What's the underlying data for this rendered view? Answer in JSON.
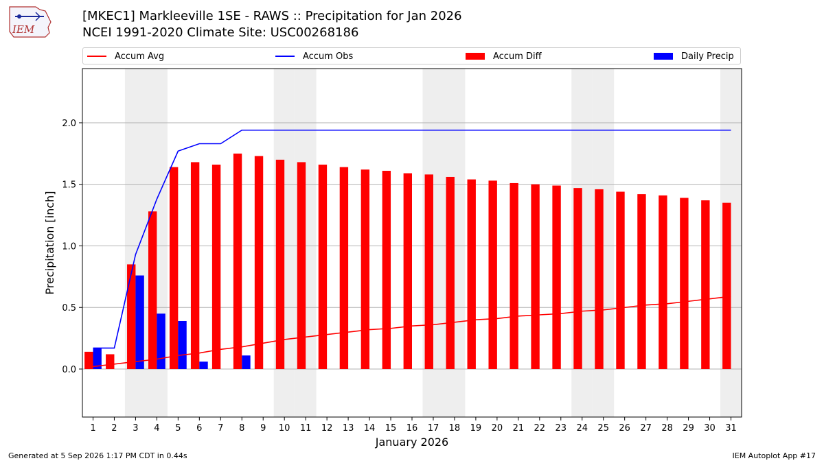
{
  "title_line1": "[MKEC1] Markleeville 1SE - RAWS :: Precipitation for Jan 2026",
  "title_line2": "NCEI 1991-2020 Climate Site: USC00268186",
  "logo_text": "IEM",
  "footer_left": "Generated at 5 Sep 2026 1:17 PM CDT in 0.44s",
  "footer_right": "IEM Autoplot App #17",
  "colors": {
    "avg": "#ff0000",
    "obs": "#0000ff",
    "diff": "#ff0000",
    "daily": "#0000ff",
    "weekend": "#eeeeee",
    "grid": "#b0b0b0"
  },
  "legend": [
    {
      "label": "Accum Avg",
      "kind": "line",
      "color": "#ff0000"
    },
    {
      "label": "Accum Obs",
      "kind": "line",
      "color": "#0000ff"
    },
    {
      "label": "Accum Diff",
      "kind": "box",
      "color": "#ff0000"
    },
    {
      "label": "Daily Precip",
      "kind": "box",
      "color": "#0000ff"
    }
  ],
  "chart_data": {
    "type": "bar",
    "xlabel": "January 2026",
    "ylabel": "Precipitation [inch]",
    "ylim": [
      -0.39,
      2.44
    ],
    "yticks": [
      0.0,
      0.5,
      1.0,
      1.5,
      2.0
    ],
    "ytick_labels": [
      "0.0",
      "0.5",
      "1.0",
      "1.5",
      "2.0"
    ],
    "grid": true,
    "legend_position": "top",
    "days": [
      1,
      2,
      3,
      4,
      5,
      6,
      7,
      8,
      9,
      10,
      11,
      12,
      13,
      14,
      15,
      16,
      17,
      18,
      19,
      20,
      21,
      22,
      23,
      24,
      25,
      26,
      27,
      28,
      29,
      30,
      31
    ],
    "shaded_days": [
      3,
      4,
      10,
      11,
      17,
      18,
      24,
      25,
      31
    ],
    "series": [
      {
        "name": "Accum Avg",
        "kind": "line",
        "values": [
          0.02,
          0.04,
          0.06,
          0.08,
          0.11,
          0.13,
          0.16,
          0.18,
          0.21,
          0.24,
          0.26,
          0.28,
          0.3,
          0.32,
          0.33,
          0.35,
          0.36,
          0.38,
          0.4,
          0.41,
          0.43,
          0.44,
          0.45,
          0.47,
          0.48,
          0.5,
          0.52,
          0.53,
          0.55,
          0.57,
          0.59
        ]
      },
      {
        "name": "Accum Obs",
        "kind": "line",
        "values": [
          0.17,
          0.17,
          0.93,
          1.38,
          1.77,
          1.83,
          1.83,
          1.94,
          1.94,
          1.94,
          1.94,
          1.94,
          1.94,
          1.94,
          1.94,
          1.94,
          1.94,
          1.94,
          1.94,
          1.94,
          1.94,
          1.94,
          1.94,
          1.94,
          1.94,
          1.94,
          1.94,
          1.94,
          1.94,
          1.94,
          1.94
        ]
      },
      {
        "name": "Accum Diff",
        "kind": "bar",
        "values": [
          0.14,
          0.12,
          0.85,
          1.28,
          1.64,
          1.68,
          1.66,
          1.75,
          1.73,
          1.7,
          1.68,
          1.66,
          1.64,
          1.62,
          1.61,
          1.59,
          1.58,
          1.56,
          1.54,
          1.53,
          1.51,
          1.5,
          1.49,
          1.47,
          1.46,
          1.44,
          1.42,
          1.41,
          1.39,
          1.37,
          1.35
        ]
      },
      {
        "name": "Daily Precip",
        "kind": "bar",
        "values": [
          0.17,
          0.0,
          0.76,
          0.45,
          0.39,
          0.06,
          0.0,
          0.11,
          0,
          0,
          0,
          0,
          0,
          0,
          0,
          0,
          0,
          0,
          0,
          0,
          0,
          0,
          0,
          0,
          0,
          0,
          0,
          0,
          0,
          0,
          0
        ]
      }
    ]
  }
}
